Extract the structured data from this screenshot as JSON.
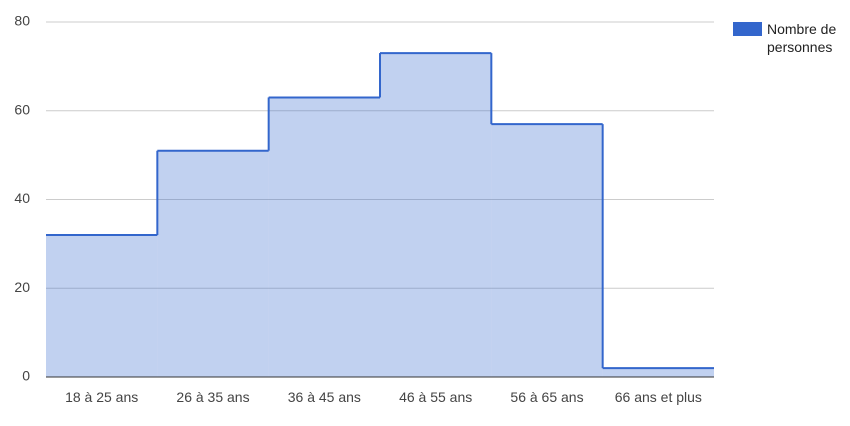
{
  "chart_data": {
    "type": "stepped_area",
    "categories": [
      "18 à 25 ans",
      "26 à 35 ans",
      "36 à 45 ans",
      "46 à 55 ans",
      "56 à 65 ans",
      "66 ans et plus"
    ],
    "series": [
      {
        "name": "Nombre de personnes",
        "color": "#3366cc",
        "values": [
          32,
          51,
          63,
          73,
          57,
          2
        ]
      }
    ],
    "ylim": [
      0,
      80
    ],
    "yticks": [
      0,
      20,
      40,
      60,
      80
    ],
    "grid": true,
    "legend": "right"
  }
}
